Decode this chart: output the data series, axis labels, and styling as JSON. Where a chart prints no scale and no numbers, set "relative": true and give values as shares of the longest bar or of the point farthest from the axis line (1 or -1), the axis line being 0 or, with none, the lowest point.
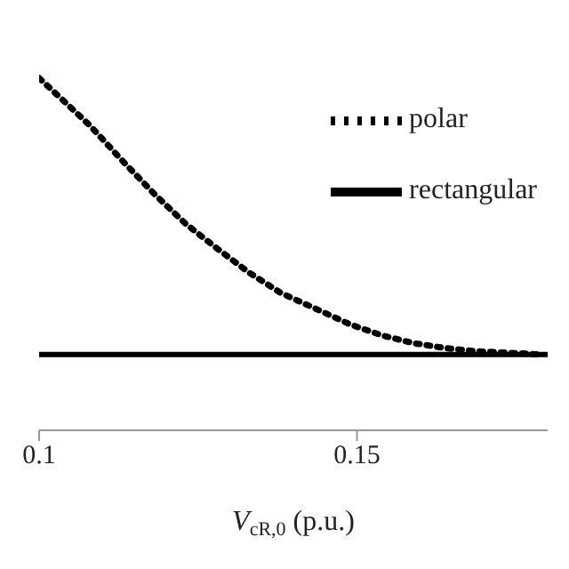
{
  "chart_data": {
    "type": "line",
    "xlabel": "V$_{cR,0}$ (p.u.)",
    "relative": true,
    "xlim": [
      0.1,
      0.18
    ],
    "xticks": [
      0.1,
      0.15
    ],
    "legend": "top right",
    "marker": "none",
    "series": [
      {
        "name": "polar",
        "color": "#000000",
        "line_style": "dotted",
        "x": [
          0.1,
          0.108,
          0.113,
          0.118,
          0.123,
          0.128,
          0.133,
          0.138,
          0.144,
          0.149,
          0.154,
          0.159,
          0.164,
          0.169,
          0.174,
          0.179
        ],
        "values": [
          1,
          0.865,
          0.767,
          0.673,
          0.587,
          0.516,
          0.448,
          0.39,
          0.341,
          0.3,
          0.269,
          0.247,
          0.233,
          0.224,
          0.22,
          0.215
        ]
      },
      {
        "name": "rectangular",
        "color": "#000000",
        "line_style": "solid",
        "x": [
          0.1,
          0.18
        ],
        "values": [
          0.215,
          0.215
        ]
      }
    ]
  }
}
